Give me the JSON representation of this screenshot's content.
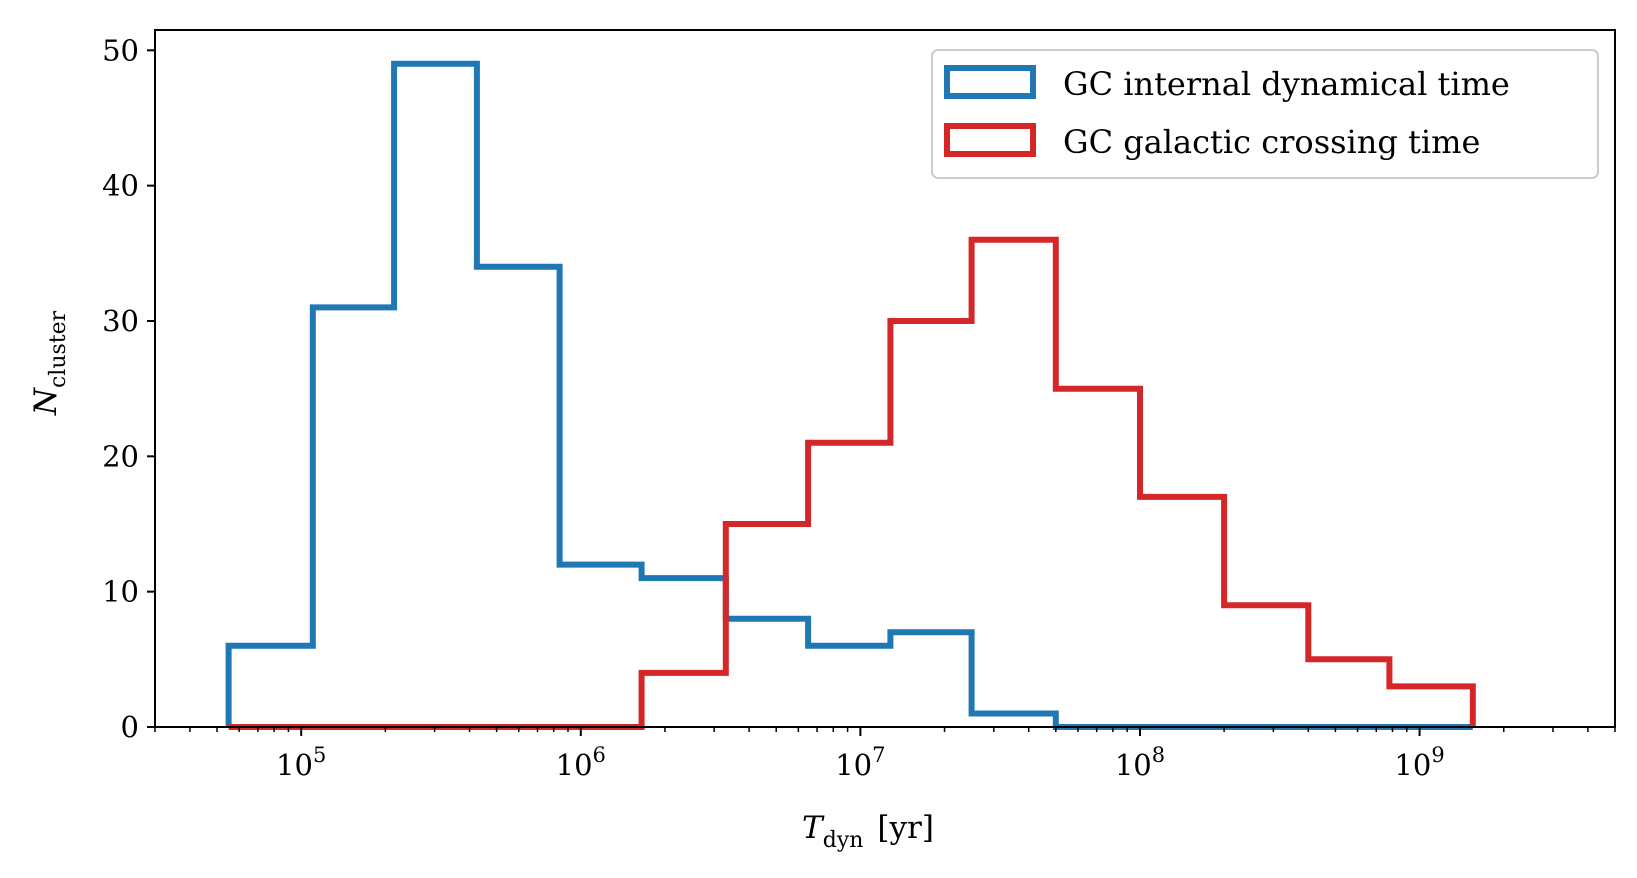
{
  "chart_data": {
    "type": "histogram",
    "x_scale": "log",
    "xlim": [
      30000,
      5000000000
    ],
    "ylim": [
      0,
      51.5
    ],
    "grid": false,
    "legend_position": "top-right",
    "xlabel": {
      "main": "T",
      "sub": "dyn",
      "unit": "[yr]"
    },
    "ylabel": {
      "main": "N",
      "sub": "cluster"
    },
    "x_ticks": [
      {
        "base": "10",
        "exp": "5",
        "value": 100000
      },
      {
        "base": "10",
        "exp": "6",
        "value": 1000000
      },
      {
        "base": "10",
        "exp": "7",
        "value": 10000000
      },
      {
        "base": "10",
        "exp": "8",
        "value": 100000000
      },
      {
        "base": "10",
        "exp": "9",
        "value": 1000000000
      }
    ],
    "y_ticks": [
      {
        "label": "0",
        "value": 0
      },
      {
        "label": "10",
        "value": 10
      },
      {
        "label": "20",
        "value": 20
      },
      {
        "label": "30",
        "value": 30
      },
      {
        "label": "40",
        "value": 40
      },
      {
        "label": "50",
        "value": 50
      }
    ],
    "series": [
      {
        "name": "GC internal dynamical time",
        "color": "#1f77b4",
        "bin_edges": [
          55000,
          110000,
          215000,
          425000,
          840000,
          1650000,
          3300000,
          6500000,
          12800000,
          25000000,
          50000000,
          100000000,
          200000000,
          400000000,
          780000000,
          1550000000
        ],
        "counts": [
          6,
          31,
          49,
          34,
          12,
          11,
          8,
          6,
          7,
          1,
          0,
          0,
          0,
          0,
          0
        ]
      },
      {
        "name": "GC galactic crossing time",
        "color": "#d62728",
        "bin_edges": [
          55000,
          110000,
          215000,
          425000,
          840000,
          1650000,
          3300000,
          6500000,
          12800000,
          25000000,
          50000000,
          100000000,
          200000000,
          400000000,
          780000000,
          1550000000
        ],
        "counts": [
          0,
          0,
          0,
          0,
          0,
          4,
          15,
          21,
          30,
          36,
          25,
          17,
          9,
          5,
          3
        ]
      }
    ]
  }
}
